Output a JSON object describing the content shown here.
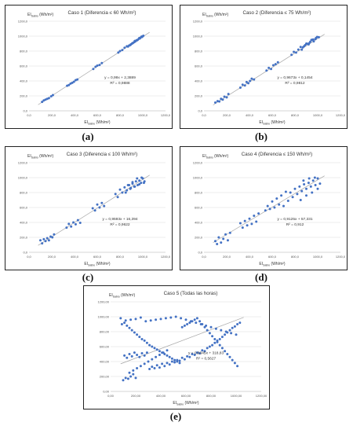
{
  "figure": {
    "panel_labels": [
      "(a)",
      "(b)",
      "(c)",
      "(d)",
      "(e)"
    ]
  },
  "colors": {
    "points": "#4472c4",
    "trendline": "#a6a6a6",
    "grid": "#d9d9d9",
    "border": "#222222"
  },
  "chart_data": [
    {
      "type": "scatter",
      "title": "Caso 1 (Diferencia ≤ 60 Wh/m²)",
      "xlabel": "EI_Sabio (Wh/m²)",
      "ylabel": "EI_Sabio (Wh/m²)",
      "xlim": [
        0,
        1200
      ],
      "ylim": [
        0,
        1200
      ],
      "xticks": [
        "0,0",
        "200,0",
        "400,0",
        "600,0",
        "800,0",
        "1000,0",
        "1200,0"
      ],
      "yticks": [
        "0,0",
        "200,0",
        "400,0",
        "600,0",
        "800,0",
        "1000,0",
        "1200,0"
      ],
      "grid": true,
      "trendline": {
        "slope": 0.99,
        "intercept": 2.3889
      },
      "equation": "y = 0,99x + 2,3889",
      "r2": "R² = 0,9888",
      "x": [
        115,
        130,
        145,
        160,
        175,
        195,
        210,
        335,
        350,
        365,
        380,
        395,
        410,
        425,
        565,
        585,
        600,
        620,
        640,
        785,
        800,
        820,
        840,
        860,
        880,
        895,
        905,
        915,
        925,
        935,
        945,
        955,
        965,
        975,
        985,
        995,
        1005,
        870,
        890,
        910,
        930,
        950,
        970,
        990
      ],
      "y": [
        120,
        140,
        150,
        160,
        170,
        195,
        210,
        335,
        345,
        365,
        375,
        390,
        410,
        420,
        560,
        590,
        605,
        615,
        640,
        780,
        800,
        815,
        845,
        865,
        875,
        890,
        900,
        910,
        920,
        930,
        945,
        950,
        965,
        970,
        985,
        990,
        1005,
        860,
        880,
        905,
        935,
        945,
        975,
        995
      ]
    },
    {
      "type": "scatter",
      "title": "Caso 2 (Diferencia ≤ 75 Wh/m²)",
      "xlabel": "EI_Sabio (Wh/m²)",
      "ylabel": "EI_Sabio (Wh/m²)",
      "xlim": [
        0,
        1200
      ],
      "ylim": [
        0,
        1200
      ],
      "xticks": [
        "0,0",
        "200,0",
        "400,0",
        "600,0",
        "800,0",
        "1000,0",
        "1200,0"
      ],
      "yticks": [
        "0,0",
        "200,0",
        "400,0",
        "600,0",
        "800,0",
        "1000,0",
        "1200,0"
      ],
      "grid": true,
      "trendline": {
        "slope": 0.9673,
        "intercept": 0.1454
      },
      "equation": "y = 0,9673x + 0,1454",
      "r2": "R² = 0,9812",
      "x": [
        100,
        120,
        135,
        150,
        165,
        180,
        200,
        215,
        320,
        340,
        360,
        375,
        390,
        405,
        420,
        440,
        550,
        570,
        590,
        610,
        630,
        650,
        770,
        790,
        810,
        830,
        850,
        870,
        890,
        905,
        920,
        935,
        950,
        965,
        980,
        995,
        1010,
        860,
        880,
        900,
        925,
        945,
        960,
        985
      ],
      "y": [
        110,
        130,
        125,
        160,
        150,
        190,
        180,
        225,
        310,
        350,
        340,
        385,
        370,
        400,
        430,
        420,
        540,
        575,
        560,
        610,
        625,
        650,
        750,
        790,
        780,
        820,
        855,
        850,
        880,
        900,
        890,
        925,
        950,
        930,
        960,
        990,
        985,
        820,
        865,
        900,
        905,
        950,
        955,
        975
      ]
    },
    {
      "type": "scatter",
      "title": "Caso 3 (Diferencia ≤ 100 Wh/m²)",
      "xlabel": "EI_Sabio (Wh/m²)",
      "ylabel": "EI_Sabio (Wh/m²)",
      "xlim": [
        0,
        1200
      ],
      "ylim": [
        0,
        1200
      ],
      "xticks": [
        "0,0",
        "200,0",
        "400,0",
        "600,0",
        "800,0",
        "1000,0",
        "1200,0"
      ],
      "yticks": [
        "0,0",
        "200,0",
        "400,0",
        "600,0",
        "800,0",
        "1000,0",
        "1200,0"
      ],
      "grid": true,
      "trendline": {
        "slope": 0.9593,
        "intercept": 16.394
      },
      "equation": "y = 0,9593x + 16,394",
      "r2": "R² = 0,9622",
      "x": [
        100,
        115,
        130,
        145,
        160,
        175,
        190,
        205,
        220,
        330,
        350,
        370,
        390,
        410,
        430,
        450,
        560,
        580,
        600,
        620,
        640,
        660,
        760,
        780,
        800,
        820,
        840,
        860,
        880,
        895,
        910,
        925,
        940,
        955,
        970,
        985,
        1000,
        1015,
        850,
        870,
        890,
        910,
        930,
        950,
        970,
        990,
        1010
      ],
      "y": [
        160,
        120,
        175,
        150,
        190,
        160,
        210,
        200,
        240,
        330,
        380,
        345,
        400,
        375,
        430,
        395,
        590,
        560,
        640,
        600,
        660,
        620,
        780,
        740,
        840,
        800,
        870,
        830,
        900,
        860,
        920,
        880,
        950,
        900,
        960,
        930,
        990,
        950,
        800,
        900,
        850,
        940,
        880,
        990,
        910,
        1000,
        930
      ]
    },
    {
      "type": "scatter",
      "title": "Caso 4 (Diferencia ≤ 150 Wh/m²)",
      "xlabel": "EI_Sabio (Wh/m²)",
      "ylabel": "EI_Sabio (Wh/m²)",
      "xlim": [
        0,
        1200
      ],
      "ylim": [
        0,
        1200
      ],
      "xticks": [
        "0,0",
        "200,0",
        "400,0",
        "600,0",
        "800,0",
        "1000,0",
        "1200,0"
      ],
      "yticks": [
        "0,0",
        "200,0",
        "400,0",
        "600,0",
        "800,0",
        "1000,0",
        "1200,0"
      ],
      "grid": true,
      "trendline": {
        "slope": 0.9125,
        "intercept": 57.331
      },
      "equation": "y = 0,9125x + 57,331",
      "r2": "R² = 0,912",
      "x": [
        100,
        115,
        130,
        150,
        170,
        190,
        210,
        230,
        320,
        340,
        360,
        380,
        400,
        420,
        440,
        460,
        480,
        540,
        560,
        580,
        600,
        620,
        640,
        660,
        680,
        740,
        760,
        780,
        800,
        820,
        840,
        860,
        880,
        900,
        920,
        940,
        960,
        980,
        1000,
        1020,
        850,
        875,
        900,
        925,
        950,
        975,
        1000,
        700,
        720
      ],
      "y": [
        150,
        110,
        200,
        130,
        180,
        240,
        160,
        260,
        390,
        330,
        420,
        360,
        450,
        380,
        490,
        410,
        520,
        560,
        620,
        580,
        680,
        600,
        720,
        640,
        760,
        690,
        800,
        740,
        850,
        780,
        880,
        820,
        910,
        850,
        930,
        880,
        960,
        900,
        990,
        920,
        700,
        960,
        760,
        990,
        800,
        1000,
        850,
        620,
        810
      ]
    },
    {
      "type": "scatter",
      "title": "Caso 5 (Todas las horas)",
      "xlabel": "EI_Sabio (Wh/m²)",
      "ylabel": "EI_Sabio (Wh/m²)",
      "xlim": [
        0,
        1200
      ],
      "ylim": [
        0,
        1200
      ],
      "xticks": [
        "0,00",
        "200,00",
        "400,00",
        "600,00",
        "800,00",
        "1000,00",
        "1200,00"
      ],
      "yticks": [
        "0,00",
        "200,00",
        "400,00",
        "600,00",
        "800,00",
        "1000,00",
        "1200,00"
      ],
      "grid": true,
      "trendline": {
        "slope": 0.6345,
        "intercept": 318.83
      },
      "equation": "y = 0,6345x + 318,83",
      "r2": "R² = 0,5627",
      "x": [
        100,
        120,
        140,
        160,
        180,
        200,
        110,
        130,
        150,
        170,
        190,
        210,
        230,
        250,
        270,
        290,
        310,
        330,
        350,
        370,
        390,
        410,
        430,
        450,
        470,
        490,
        510,
        530,
        550,
        570,
        590,
        610,
        630,
        650,
        670,
        690,
        710,
        730,
        750,
        770,
        790,
        810,
        830,
        850,
        870,
        890,
        910,
        930,
        950,
        970,
        990,
        1010,
        1030,
        90,
        110,
        130,
        150,
        170,
        190,
        210,
        230,
        250,
        270,
        290,
        310,
        330,
        350,
        370,
        390,
        410,
        430,
        450,
        470,
        490,
        510,
        530,
        550,
        570,
        590,
        610,
        630,
        650,
        670,
        690,
        710,
        730,
        750,
        770,
        790,
        810,
        830,
        850,
        870,
        890,
        910,
        930,
        950,
        970,
        990,
        1010,
        80,
        120,
        160,
        200,
        240,
        280,
        320,
        360,
        400,
        440,
        480,
        520,
        560,
        600,
        640,
        680,
        720,
        760,
        800,
        840,
        880,
        920,
        960,
        1000,
        150,
        180,
        210,
        240,
        270,
        300,
        330,
        360,
        390,
        420,
        450
      ],
      "y": [
        150,
        180,
        170,
        200,
        230,
        180,
        480,
        450,
        500,
        470,
        520,
        490,
        460,
        510,
        480,
        520,
        300,
        330,
        310,
        350,
        320,
        370,
        340,
        380,
        360,
        400,
        390,
        420,
        410,
        450,
        430,
        470,
        460,
        500,
        490,
        520,
        510,
        550,
        540,
        580,
        600,
        620,
        650,
        680,
        700,
        730,
        760,
        790,
        820,
        850,
        870,
        900,
        920,
        900,
        920,
        880,
        850,
        820,
        790,
        760,
        730,
        700,
        680,
        650,
        620,
        600,
        580,
        560,
        540,
        520,
        500,
        480,
        460,
        440,
        420,
        400,
        380,
        860,
        880,
        900,
        920,
        940,
        960,
        980,
        940,
        900,
        860,
        820,
        780,
        740,
        700,
        660,
        620,
        580,
        540,
        500,
        460,
        420,
        380,
        340,
        980,
        950,
        960,
        970,
        990,
        940,
        950,
        960,
        970,
        980,
        990,
        1000,
        980,
        960,
        940,
        920,
        900,
        880,
        860,
        840,
        820,
        800,
        780,
        760,
        250,
        280,
        310,
        340,
        370,
        400,
        430,
        460,
        490,
        520,
        550
      ]
    }
  ]
}
